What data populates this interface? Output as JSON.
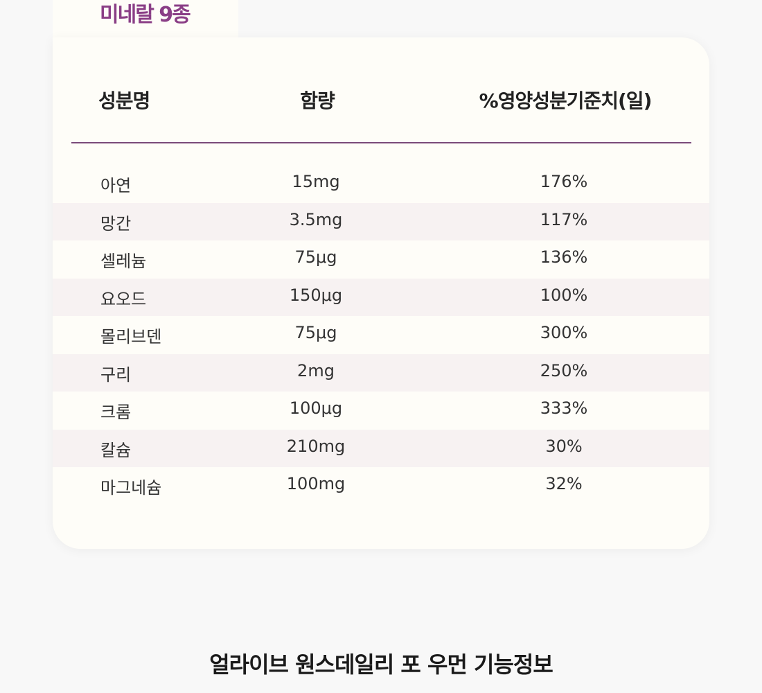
{
  "tab": "미네랄 9종",
  "table": {
    "headers": [
      "성분명",
      "함량",
      "%영양성분기준치(일)"
    ],
    "rows": [
      [
        "아연",
        "15mg",
        "176%"
      ],
      [
        "망간",
        "3.5mg",
        "117%"
      ],
      [
        "셀레늄",
        "75μg",
        "136%"
      ],
      [
        "요오드",
        "150μg",
        "100%"
      ],
      [
        "몰리브덴",
        "75μg",
        "300%"
      ],
      [
        "구리",
        "2mg",
        "250%"
      ],
      [
        "크롬",
        "100μg",
        "333%"
      ],
      [
        "칼슘",
        "210mg",
        "30%"
      ],
      [
        "마그네슘",
        "100mg",
        "32%"
      ]
    ]
  },
  "footer": {
    "title": "얼라이브 원스데일리 포 우먼 기능정보"
  }
}
